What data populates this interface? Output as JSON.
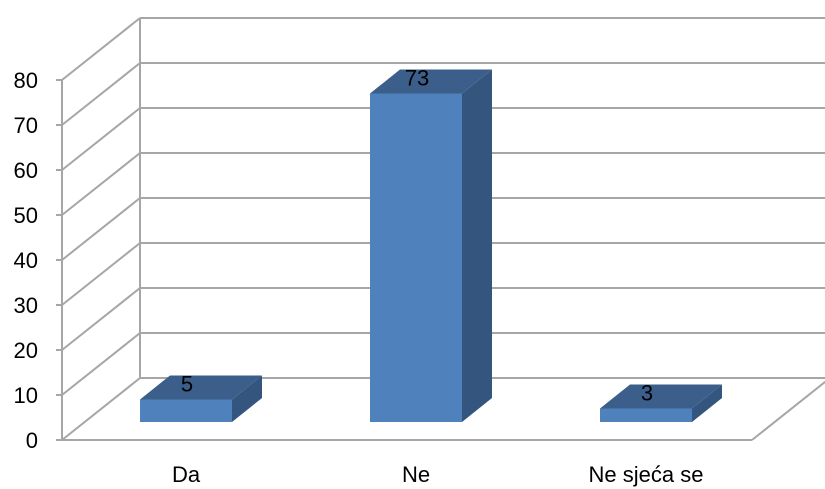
{
  "chart_data": {
    "type": "bar",
    "categories": [
      "Da",
      "Ne",
      "Ne sjeća se"
    ],
    "values": [
      5,
      73,
      3
    ],
    "data_labels": [
      "5",
      "73",
      "3"
    ],
    "yticks": [
      "0",
      "10",
      "20",
      "30",
      "40",
      "50",
      "60",
      "70",
      "80"
    ],
    "ylim": [
      0,
      80
    ],
    "grid": true,
    "legend": "none",
    "three_d": true,
    "colors": {
      "bar_front": "#4f81bd",
      "bar_top": "#3b5f8a",
      "bar_side": "#34557d",
      "grid": "#a6a6a6"
    }
  }
}
